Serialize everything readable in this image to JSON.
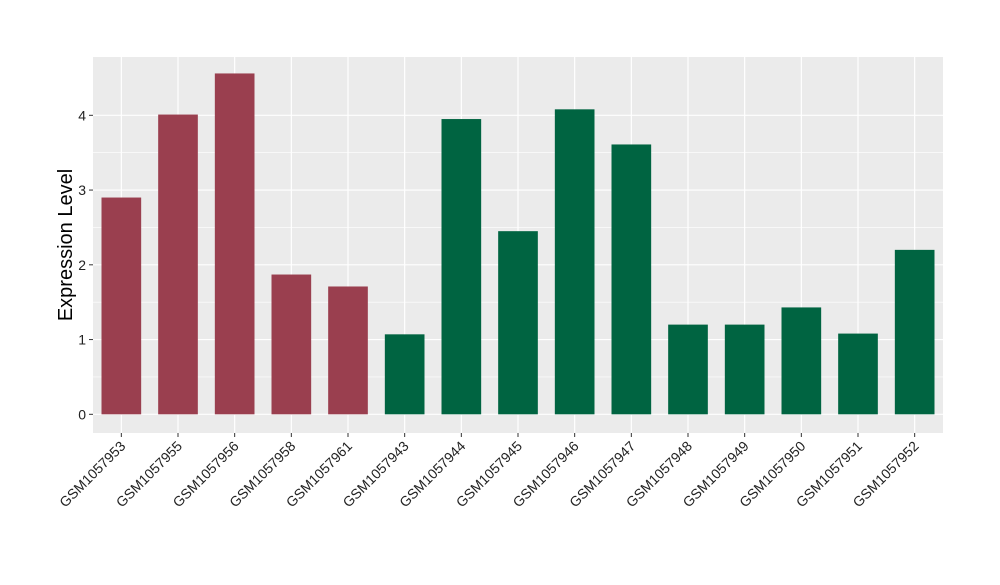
{
  "chart_data": {
    "type": "bar",
    "title": "",
    "xlabel": "",
    "ylabel": "Expression Level",
    "ylim": [
      -0.25,
      4.78
    ],
    "yticks": [
      0,
      1,
      2,
      3,
      4
    ],
    "grid": true,
    "legend": "none",
    "categories": [
      "GSM1057953",
      "GSM1057955",
      "GSM1057956",
      "GSM1057958",
      "GSM1057961",
      "GSM1057943",
      "GSM1057944",
      "GSM1057945",
      "GSM1057946",
      "GSM1057947",
      "GSM1057948",
      "GSM1057949",
      "GSM1057950",
      "GSM1057951",
      "GSM1057952"
    ],
    "values": [
      2.9,
      4.01,
      4.56,
      1.87,
      1.71,
      1.07,
      3.95,
      2.45,
      4.08,
      3.61,
      1.2,
      1.2,
      1.43,
      1.08,
      2.2
    ],
    "groups": [
      "a",
      "a",
      "a",
      "a",
      "a",
      "b",
      "b",
      "b",
      "b",
      "b",
      "b",
      "b",
      "b",
      "b",
      "b"
    ],
    "colors": {
      "a": "#9a3f4f",
      "b": "#006441",
      "panel": "#ebebeb",
      "grid": "#ffffff"
    }
  }
}
